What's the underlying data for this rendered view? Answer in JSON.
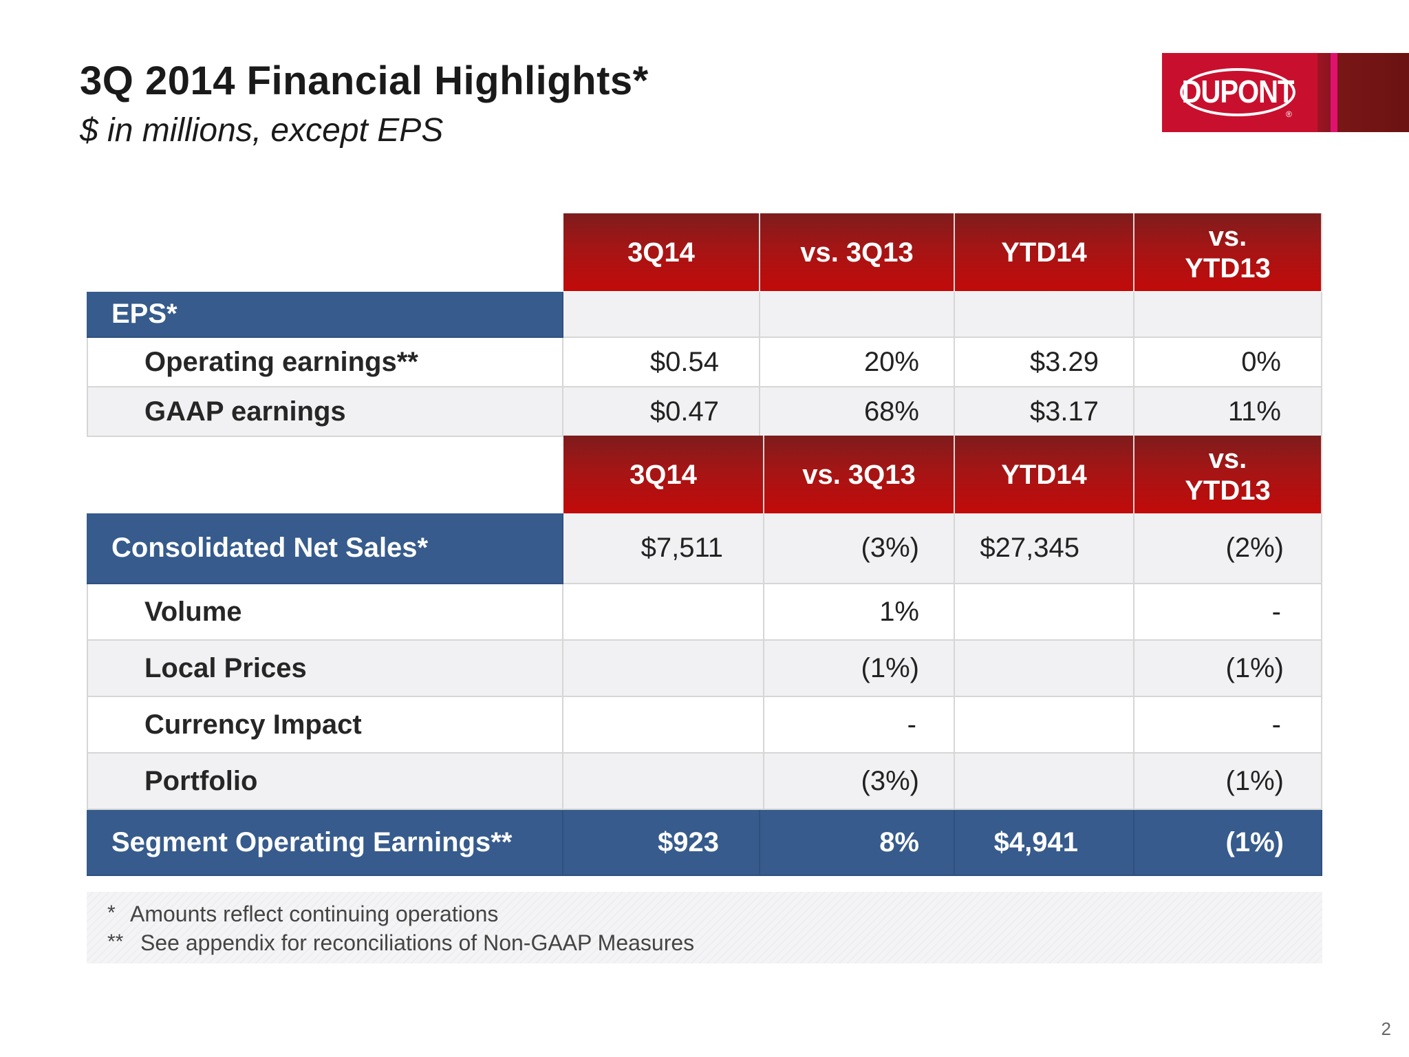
{
  "header": {
    "title": "3Q 2014 Financial Highlights*",
    "subtitle": "$ in millions, except EPS"
  },
  "logo": {
    "text": "DUPONT",
    "icon": "dupont-logo"
  },
  "columns": [
    "3Q14",
    "vs. 3Q13",
    "YTD14",
    "vs. YTD13"
  ],
  "eps_section": {
    "label": "EPS*",
    "rows": [
      {
        "label": "Operating earnings**",
        "q": "$0.54",
        "vsq": "20%",
        "ytd": "$3.29",
        "vsytd": "0%"
      },
      {
        "label": "GAAP earnings",
        "q": "$0.47",
        "vsq": "68%",
        "ytd": "$3.17",
        "vsytd": "11%"
      }
    ]
  },
  "sales_section": {
    "total": {
      "label": "Consolidated Net Sales*",
      "q": "$7,511",
      "vsq": "(3%)",
      "ytd": "$27,345",
      "vsytd": "(2%)"
    },
    "rows": [
      {
        "label": "Volume",
        "vsq": "1%",
        "vsytd": "-"
      },
      {
        "label": "Local Prices",
        "vsq": "(1%)",
        "vsytd": "(1%)"
      },
      {
        "label": "Currency Impact",
        "vsq": "-",
        "vsytd": "-"
      },
      {
        "label": "Portfolio",
        "vsq": "(3%)",
        "vsytd": "(1%)"
      }
    ]
  },
  "segment": {
    "label": "Segment Operating Earnings**",
    "q": "$923",
    "vsq": "8%",
    "ytd": "$4,941",
    "vsytd": "(1%)"
  },
  "footnotes": [
    {
      "mark": "*",
      "text": "Amounts reflect continuing operations"
    },
    {
      "mark": "**",
      "text": "See appendix for reconciliations of Non-GAAP Measures"
    }
  ],
  "page_number": "2"
}
